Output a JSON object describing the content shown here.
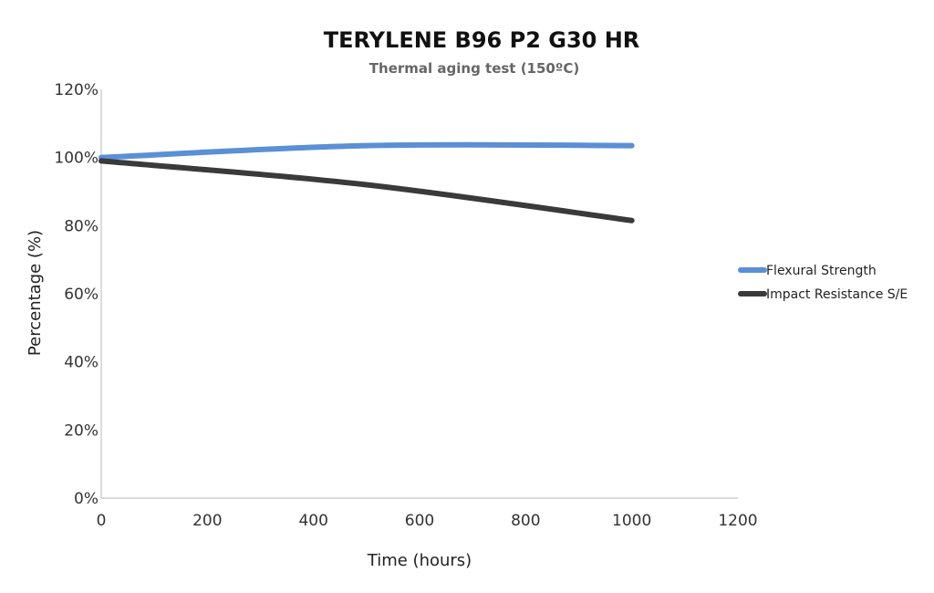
{
  "chart_data": {
    "type": "line",
    "title": "TERYLENE B96 P2 G30 HR",
    "subtitle": "Thermal aging test (150ºC)",
    "xlabel": "Time (hours)",
    "ylabel": "Percentage (%)",
    "xlim": [
      0,
      1200
    ],
    "ylim": [
      0,
      120
    ],
    "x_ticks": [
      0,
      200,
      400,
      600,
      800,
      1000,
      1200
    ],
    "x_tick_labels": [
      "0",
      "200",
      "400",
      "600",
      "800",
      "1000",
      "1200"
    ],
    "y_ticks": [
      0,
      20,
      40,
      60,
      80,
      100,
      120
    ],
    "y_tick_labels": [
      "0%",
      "20%",
      "40%",
      "60%",
      "80%",
      "100%",
      "120%"
    ],
    "grid": false,
    "legend_position": "right",
    "series": [
      {
        "name": "Flexural Strength",
        "color": "#5b8fd6",
        "x": [
          0,
          500,
          1000
        ],
        "y": [
          100,
          103.5,
          103.5
        ]
      },
      {
        "name": "Impact Resistance S/E",
        "color": "#3a3a3a",
        "x": [
          0,
          500,
          1000
        ],
        "y": [
          99,
          92,
          81.5
        ]
      }
    ]
  }
}
